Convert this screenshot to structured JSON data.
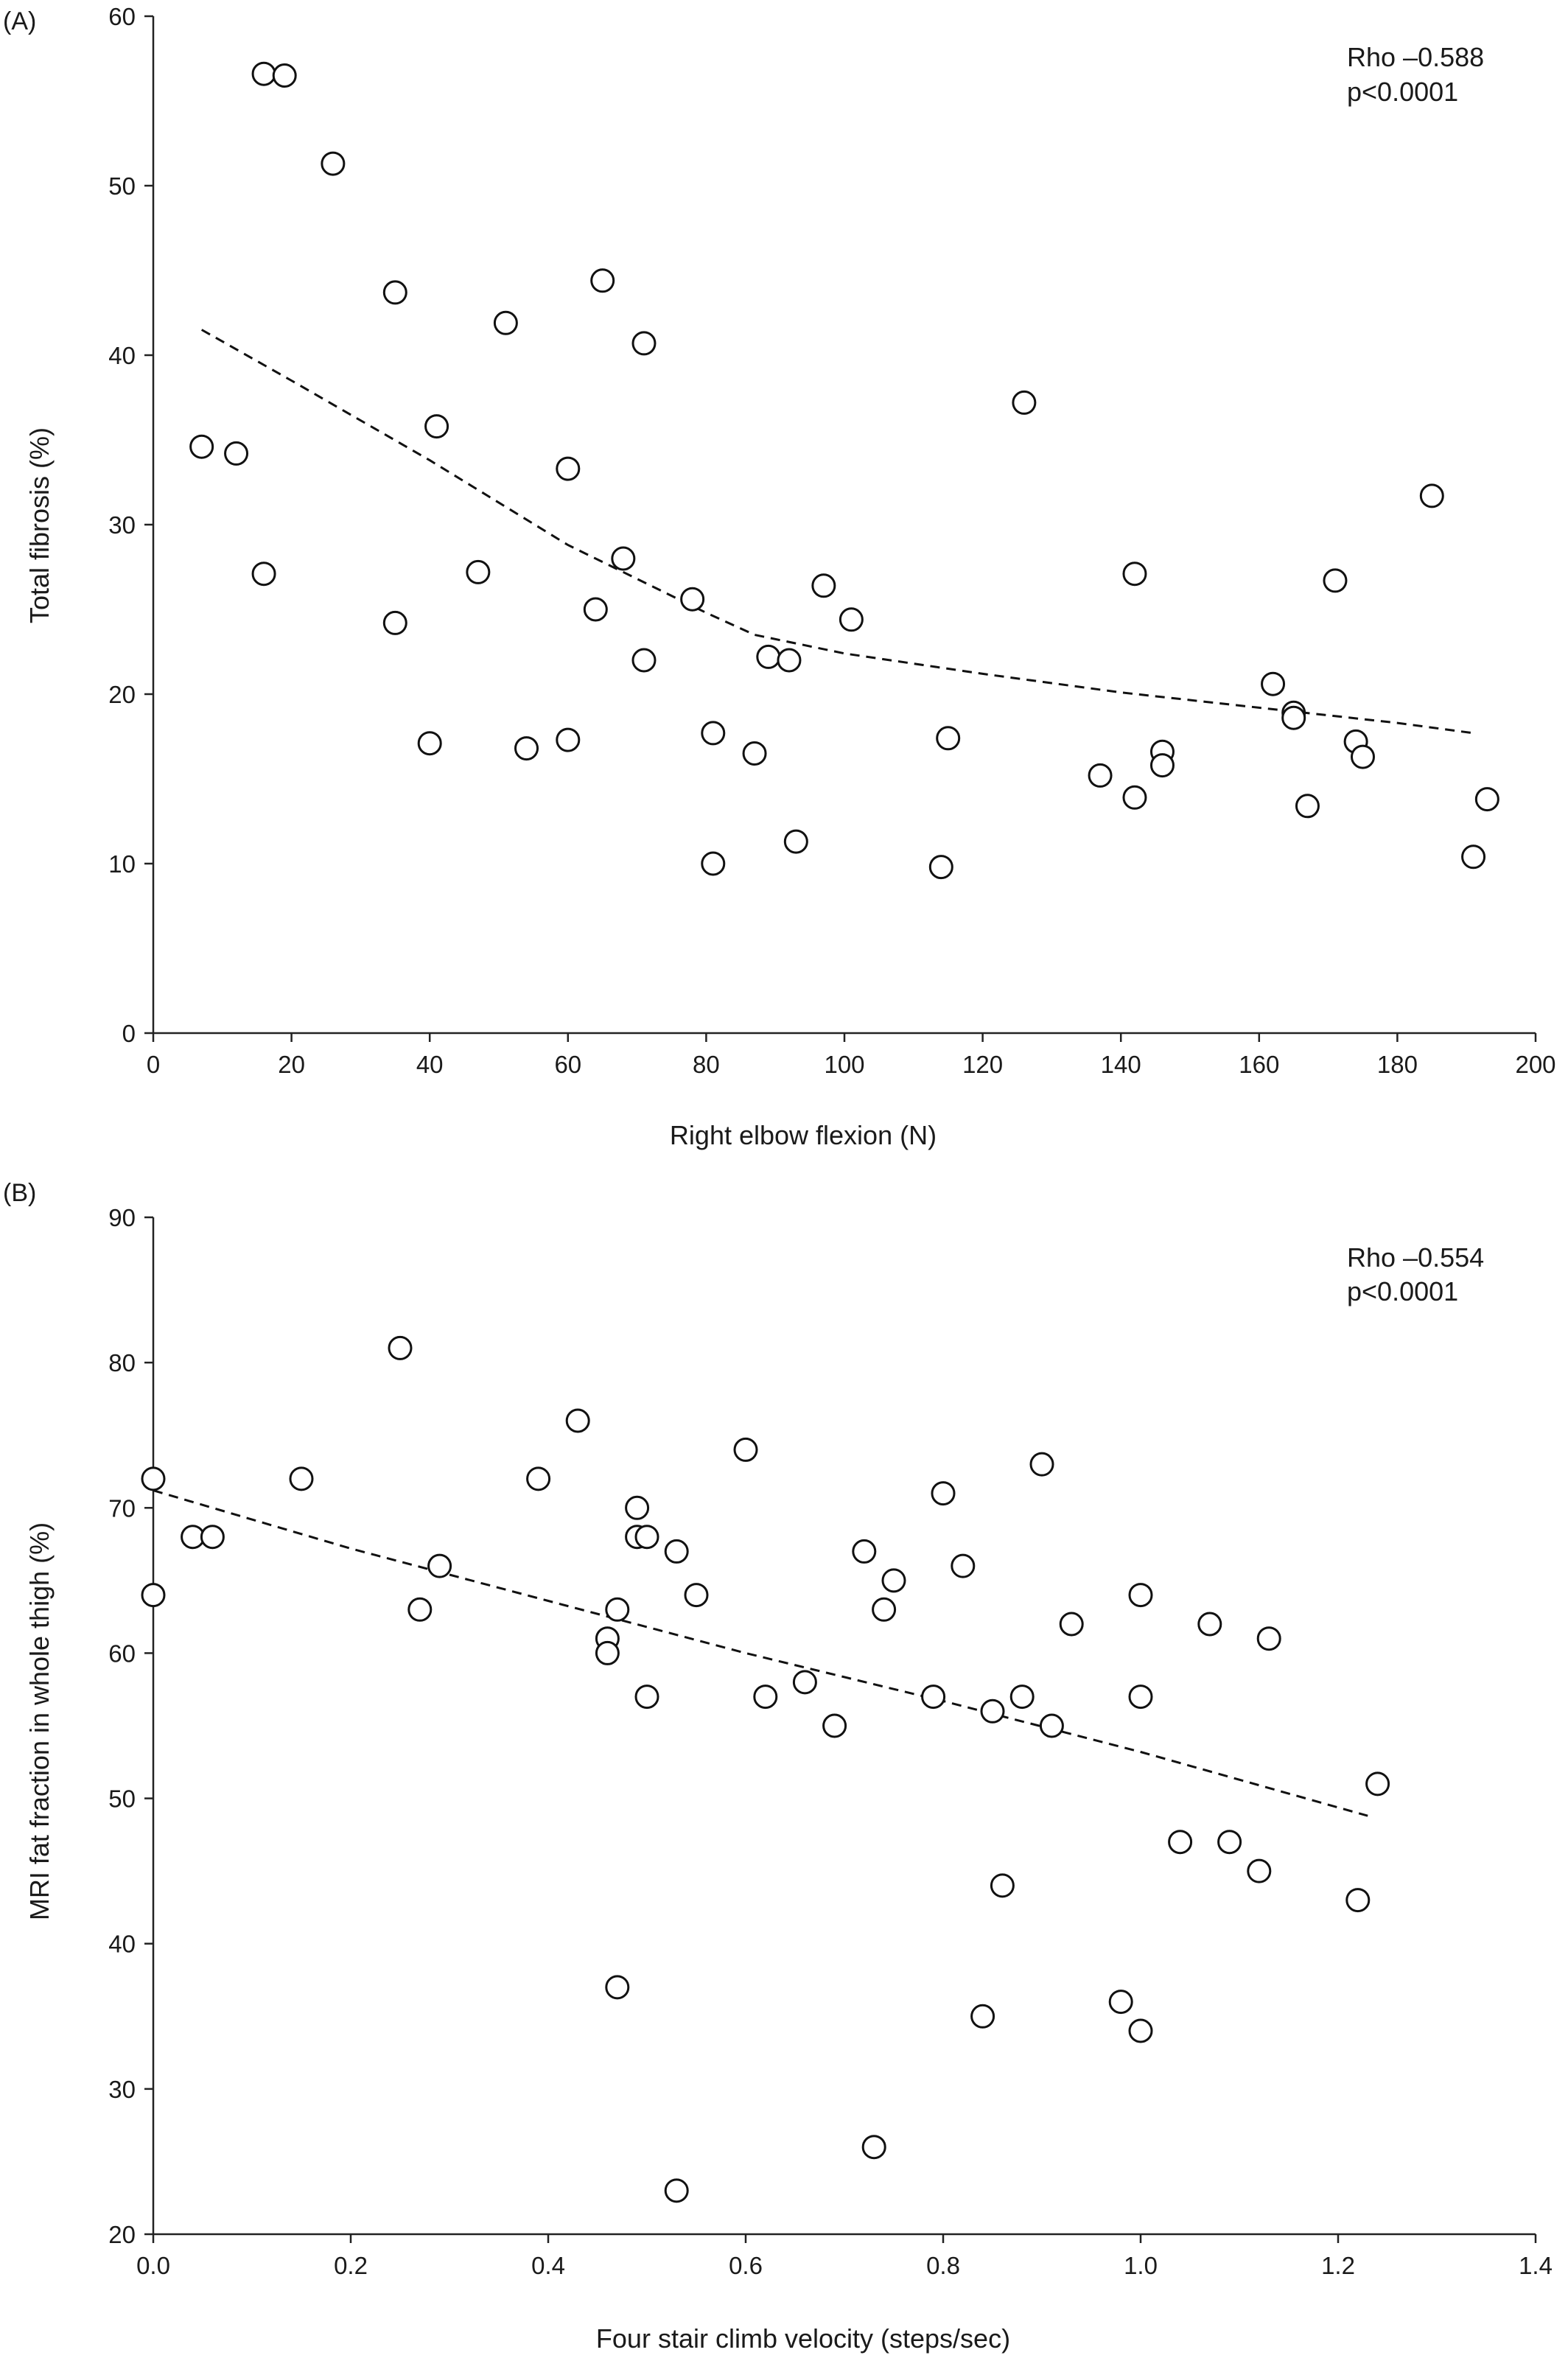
{
  "chart_data": [
    {
      "type": "scatter",
      "panel_label": "(A)",
      "xlabel": "Right elbow flexion (N)",
      "ylabel": "Total fibrosis (%)",
      "xlim": [
        0,
        200
      ],
      "ylim": [
        0,
        60
      ],
      "x_ticks": [
        0,
        20,
        40,
        60,
        80,
        100,
        120,
        140,
        160,
        180,
        200
      ],
      "y_ticks": [
        0,
        10,
        20,
        30,
        40,
        50,
        60
      ],
      "x_tick_labels": [
        "0",
        "20",
        "40",
        "60",
        "80",
        "100",
        "120",
        "140",
        "160",
        "180",
        "200"
      ],
      "y_tick_labels": [
        "0",
        "10",
        "20",
        "30",
        "40",
        "50",
        "60"
      ],
      "annotation": [
        "Rho –0.588",
        "p<0.0001"
      ],
      "grid": false,
      "marker": "open-circle",
      "points": [
        {
          "x": 7,
          "y": 34.6
        },
        {
          "x": 12,
          "y": 34.2
        },
        {
          "x": 16,
          "y": 56.6
        },
        {
          "x": 16,
          "y": 27.1
        },
        {
          "x": 19,
          "y": 56.5
        },
        {
          "x": 26,
          "y": 51.3
        },
        {
          "x": 35,
          "y": 43.7
        },
        {
          "x": 35,
          "y": 24.2
        },
        {
          "x": 40,
          "y": 17.1
        },
        {
          "x": 41,
          "y": 35.8
        },
        {
          "x": 47,
          "y": 27.2
        },
        {
          "x": 51,
          "y": 41.9
        },
        {
          "x": 54,
          "y": 16.8
        },
        {
          "x": 60,
          "y": 33.3
        },
        {
          "x": 60,
          "y": 17.3
        },
        {
          "x": 64,
          "y": 25.0
        },
        {
          "x": 65,
          "y": 44.4
        },
        {
          "x": 68,
          "y": 28.0
        },
        {
          "x": 71,
          "y": 40.7
        },
        {
          "x": 71,
          "y": 22.0
        },
        {
          "x": 78,
          "y": 25.6
        },
        {
          "x": 81,
          "y": 17.7
        },
        {
          "x": 81,
          "y": 10.0
        },
        {
          "x": 87,
          "y": 16.5
        },
        {
          "x": 89,
          "y": 22.2
        },
        {
          "x": 92,
          "y": 22.0
        },
        {
          "x": 93,
          "y": 11.3
        },
        {
          "x": 97,
          "y": 26.4
        },
        {
          "x": 101,
          "y": 24.4
        },
        {
          "x": 114,
          "y": 9.8
        },
        {
          "x": 115,
          "y": 17.4
        },
        {
          "x": 126,
          "y": 37.2
        },
        {
          "x": 137,
          "y": 15.2
        },
        {
          "x": 142,
          "y": 27.1
        },
        {
          "x": 142,
          "y": 13.9
        },
        {
          "x": 146,
          "y": 16.6
        },
        {
          "x": 146,
          "y": 15.8
        },
        {
          "x": 162,
          "y": 20.6
        },
        {
          "x": 165,
          "y": 18.9
        },
        {
          "x": 165,
          "y": 18.6
        },
        {
          "x": 167,
          "y": 13.4
        },
        {
          "x": 171,
          "y": 26.7
        },
        {
          "x": 174,
          "y": 17.2
        },
        {
          "x": 175,
          "y": 16.3
        },
        {
          "x": 185,
          "y": 31.7
        },
        {
          "x": 191,
          "y": 10.4
        },
        {
          "x": 193,
          "y": 13.8
        }
      ],
      "trend_line": {
        "style": "dashed",
        "x": [
          7,
          20,
          40,
          60,
          80,
          87,
          100,
          120,
          140,
          160,
          180,
          191
        ],
        "y": [
          41.5,
          38.5,
          33.8,
          28.8,
          24.8,
          23.5,
          22.4,
          21.2,
          20.1,
          19.2,
          18.3,
          17.7
        ]
      }
    },
    {
      "type": "scatter",
      "panel_label": "(B)",
      "xlabel": "Four stair climb velocity (steps/sec)",
      "ylabel": "MRI fat fraction in whole thigh (%)",
      "xlim": [
        0,
        1.4
      ],
      "ylim": [
        20,
        90
      ],
      "x_ticks": [
        0,
        0.2,
        0.4,
        0.6,
        0.8,
        1.0,
        1.2,
        1.4
      ],
      "y_ticks": [
        20,
        30,
        40,
        50,
        60,
        70,
        80,
        90
      ],
      "x_tick_labels": [
        "0.0",
        "0.2",
        "0.4",
        "0.6",
        "0.8",
        "1.0",
        "1.2",
        "1.4"
      ],
      "y_tick_labels": [
        "20",
        "30",
        "40",
        "50",
        "60",
        "70",
        "80",
        "90"
      ],
      "annotation": [
        "Rho –0.554",
        "p<0.0001"
      ],
      "grid": false,
      "marker": "open-circle",
      "points": [
        {
          "x": 0.0,
          "y": 72
        },
        {
          "x": 0.0,
          "y": 64
        },
        {
          "x": 0.04,
          "y": 68
        },
        {
          "x": 0.06,
          "y": 68
        },
        {
          "x": 0.15,
          "y": 72
        },
        {
          "x": 0.25,
          "y": 81
        },
        {
          "x": 0.27,
          "y": 63
        },
        {
          "x": 0.29,
          "y": 66
        },
        {
          "x": 0.39,
          "y": 72
        },
        {
          "x": 0.43,
          "y": 76
        },
        {
          "x": 0.46,
          "y": 61
        },
        {
          "x": 0.46,
          "y": 60
        },
        {
          "x": 0.47,
          "y": 37
        },
        {
          "x": 0.47,
          "y": 63
        },
        {
          "x": 0.49,
          "y": 70
        },
        {
          "x": 0.49,
          "y": 68
        },
        {
          "x": 0.5,
          "y": 68
        },
        {
          "x": 0.5,
          "y": 57
        },
        {
          "x": 0.53,
          "y": 23
        },
        {
          "x": 0.53,
          "y": 67
        },
        {
          "x": 0.55,
          "y": 64
        },
        {
          "x": 0.6,
          "y": 74
        },
        {
          "x": 0.62,
          "y": 57
        },
        {
          "x": 0.66,
          "y": 58
        },
        {
          "x": 0.69,
          "y": 55
        },
        {
          "x": 0.72,
          "y": 67
        },
        {
          "x": 0.73,
          "y": 26
        },
        {
          "x": 0.74,
          "y": 63
        },
        {
          "x": 0.75,
          "y": 65
        },
        {
          "x": 0.79,
          "y": 57
        },
        {
          "x": 0.8,
          "y": 71
        },
        {
          "x": 0.82,
          "y": 66
        },
        {
          "x": 0.84,
          "y": 35
        },
        {
          "x": 0.85,
          "y": 56
        },
        {
          "x": 0.86,
          "y": 44
        },
        {
          "x": 0.88,
          "y": 57
        },
        {
          "x": 0.9,
          "y": 73
        },
        {
          "x": 0.91,
          "y": 55
        },
        {
          "x": 0.93,
          "y": 62
        },
        {
          "x": 0.98,
          "y": 36
        },
        {
          "x": 1.0,
          "y": 64
        },
        {
          "x": 1.0,
          "y": 34
        },
        {
          "x": 1.0,
          "y": 57
        },
        {
          "x": 1.04,
          "y": 47
        },
        {
          "x": 1.07,
          "y": 62
        },
        {
          "x": 1.09,
          "y": 47
        },
        {
          "x": 1.12,
          "y": 45
        },
        {
          "x": 1.13,
          "y": 61
        },
        {
          "x": 1.22,
          "y": 43
        },
        {
          "x": 1.24,
          "y": 51
        }
      ],
      "trend_line": {
        "style": "dashed",
        "x": [
          0.0,
          0.2,
          0.4,
          0.6,
          0.8,
          1.0,
          1.23
        ],
        "y": [
          71.2,
          67.2,
          63.6,
          60.0,
          56.7,
          53.2,
          48.8
        ]
      }
    }
  ]
}
